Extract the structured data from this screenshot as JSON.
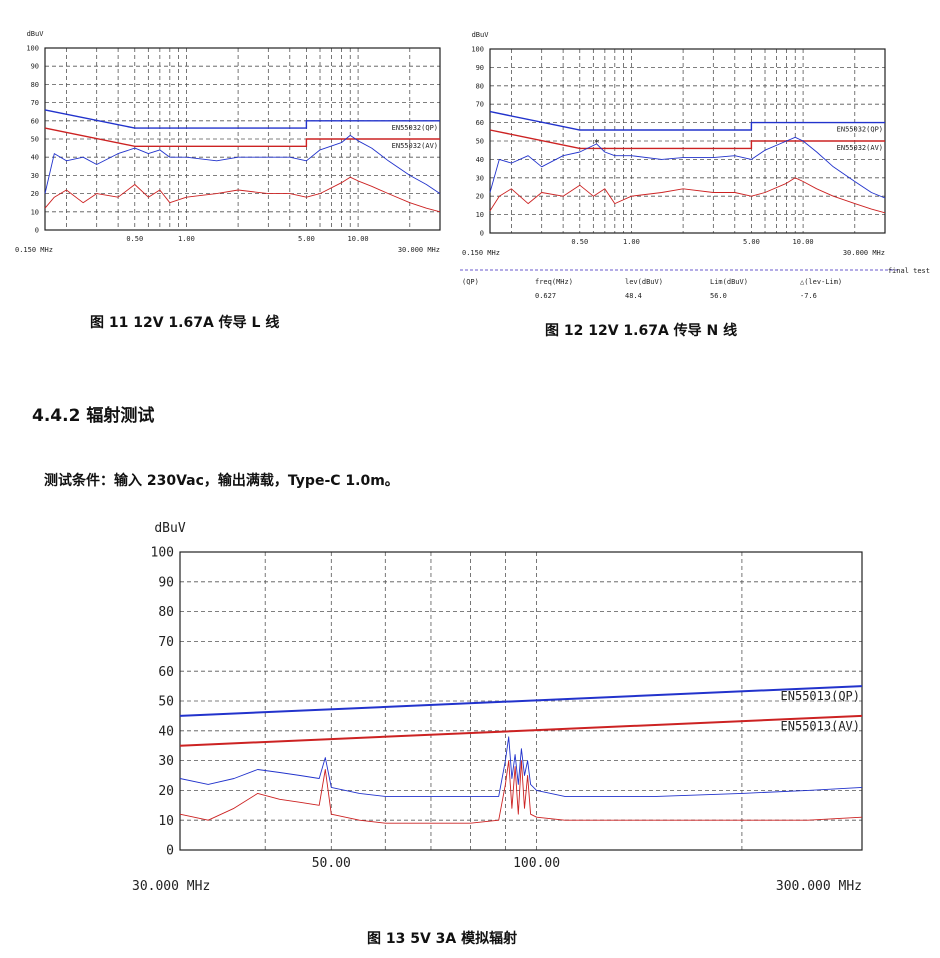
{
  "figures": {
    "fig11": {
      "caption": "图 11  12V 1.67A 传导  L 线"
    },
    "fig12": {
      "caption": "图 12  12V 1.67A 传导 N 线",
      "final_label": "final test",
      "table": {
        "detector": "(QP)",
        "headers": [
          "freq(MHz)",
          "lev(dBuV)",
          "Lim(dBuV)",
          "△(lev-Lim)"
        ],
        "row": [
          "0.627",
          "48.4",
          "56.0",
          "-7.6"
        ]
      }
    },
    "fig13": {
      "caption": "图 13  5V 3A 模拟辐射"
    }
  },
  "section": {
    "title": "4.4.2 辐射测试"
  },
  "condition": {
    "text": "测试条件：输入 230Vac，输出满载，Type-C 1.0m。"
  },
  "chart_data": [
    {
      "type": "line",
      "id": "fig11",
      "ylabel": "dBuV",
      "ylim": [
        0,
        100
      ],
      "yticks": [
        "0",
        "10",
        "20",
        "30",
        "40",
        "50",
        "60",
        "70",
        "80",
        "90",
        "100"
      ],
      "x_scale": "log",
      "xlim_mhz": [
        0.15,
        30
      ],
      "xticks": [
        {
          "v": 0.5,
          "label": "0.50"
        },
        {
          "v": 1,
          "label": "1.00"
        },
        {
          "v": 5,
          "label": "5.00"
        },
        {
          "v": 10,
          "label": "10.00"
        }
      ],
      "x_start_label": "0.150 MHz",
      "x_end_label": "30.000 MHz",
      "grid": true,
      "limits": [
        {
          "name": "EN55032(QP)",
          "color": "#2233cc",
          "points": [
            [
              0.15,
              66
            ],
            [
              0.5,
              56
            ],
            [
              5,
              56
            ],
            [
              5,
              60
            ],
            [
              30,
              60
            ]
          ]
        },
        {
          "name": "EN55032(AV)",
          "color": "#cc2222",
          "points": [
            [
              0.15,
              56
            ],
            [
              0.5,
              46
            ],
            [
              5,
              46
            ],
            [
              5,
              50
            ],
            [
              30,
              50
            ]
          ]
        }
      ],
      "series": [
        {
          "color": "#2233cc",
          "points": [
            [
              0.15,
              20
            ],
            [
              0.17,
              42
            ],
            [
              0.2,
              38
            ],
            [
              0.25,
              40
            ],
            [
              0.3,
              36
            ],
            [
              0.4,
              42
            ],
            [
              0.5,
              45
            ],
            [
              0.6,
              42
            ],
            [
              0.7,
              44
            ],
            [
              0.8,
              40
            ],
            [
              1,
              40
            ],
            [
              1.5,
              38
            ],
            [
              2,
              40
            ],
            [
              3,
              40
            ],
            [
              4,
              40
            ],
            [
              5,
              38
            ],
            [
              6,
              44
            ],
            [
              8,
              48
            ],
            [
              9,
              52
            ],
            [
              10,
              49
            ],
            [
              12,
              45
            ],
            [
              15,
              38
            ],
            [
              20,
              30
            ],
            [
              25,
              25
            ],
            [
              30,
              20
            ]
          ]
        },
        {
          "color": "#cc2222",
          "points": [
            [
              0.15,
              12
            ],
            [
              0.17,
              18
            ],
            [
              0.2,
              22
            ],
            [
              0.25,
              15
            ],
            [
              0.3,
              20
            ],
            [
              0.4,
              18
            ],
            [
              0.5,
              25
            ],
            [
              0.6,
              18
            ],
            [
              0.7,
              22
            ],
            [
              0.8,
              15
            ],
            [
              1,
              18
            ],
            [
              1.5,
              20
            ],
            [
              2,
              22
            ],
            [
              3,
              20
            ],
            [
              4,
              20
            ],
            [
              5,
              18
            ],
            [
              6,
              20
            ],
            [
              8,
              26
            ],
            [
              9,
              29
            ],
            [
              10,
              27
            ],
            [
              12,
              24
            ],
            [
              15,
              20
            ],
            [
              20,
              15
            ],
            [
              25,
              12
            ],
            [
              30,
              10
            ]
          ]
        }
      ]
    },
    {
      "type": "line",
      "id": "fig12",
      "ylabel": "dBuV",
      "ylim": [
        0,
        100
      ],
      "yticks": [
        "0",
        "10",
        "20",
        "30",
        "40",
        "50",
        "60",
        "70",
        "80",
        "90",
        "100"
      ],
      "x_scale": "log",
      "xlim_mhz": [
        0.15,
        30
      ],
      "xticks": [
        {
          "v": 0.5,
          "label": "0.50"
        },
        {
          "v": 1,
          "label": "1.00"
        },
        {
          "v": 5,
          "label": "5.00"
        },
        {
          "v": 10,
          "label": "10.00"
        }
      ],
      "x_start_label": "0.150 MHz",
      "x_end_label": "30.000 MHz",
      "grid": true,
      "marker": {
        "x": 0.627,
        "y": 48.4,
        "symbol": "*"
      },
      "limits": [
        {
          "name": "EN55032(QP)",
          "color": "#2233cc",
          "points": [
            [
              0.15,
              66
            ],
            [
              0.5,
              56
            ],
            [
              5,
              56
            ],
            [
              5,
              60
            ],
            [
              30,
              60
            ]
          ]
        },
        {
          "name": "EN55032(AV)",
          "color": "#cc2222",
          "points": [
            [
              0.15,
              56
            ],
            [
              0.5,
              46
            ],
            [
              5,
              46
            ],
            [
              5,
              50
            ],
            [
              30,
              50
            ]
          ]
        }
      ],
      "series": [
        {
          "color": "#2233cc",
          "points": [
            [
              0.15,
              22
            ],
            [
              0.17,
              40
            ],
            [
              0.2,
              38
            ],
            [
              0.25,
              42
            ],
            [
              0.3,
              36
            ],
            [
              0.4,
              42
            ],
            [
              0.5,
              44
            ],
            [
              0.627,
              48.4
            ],
            [
              0.7,
              44
            ],
            [
              0.8,
              42
            ],
            [
              1,
              42
            ],
            [
              1.5,
              40
            ],
            [
              2,
              41
            ],
            [
              3,
              41
            ],
            [
              4,
              42
            ],
            [
              5,
              40
            ],
            [
              6,
              45
            ],
            [
              8,
              50
            ],
            [
              9,
              52
            ],
            [
              10,
              50
            ],
            [
              12,
              44
            ],
            [
              15,
              36
            ],
            [
              20,
              28
            ],
            [
              25,
              22
            ],
            [
              30,
              19
            ]
          ]
        },
        {
          "color": "#cc2222",
          "points": [
            [
              0.15,
              12
            ],
            [
              0.17,
              20
            ],
            [
              0.2,
              24
            ],
            [
              0.25,
              16
            ],
            [
              0.3,
              22
            ],
            [
              0.4,
              20
            ],
            [
              0.5,
              26
            ],
            [
              0.6,
              20
            ],
            [
              0.7,
              24
            ],
            [
              0.8,
              16
            ],
            [
              1,
              20
            ],
            [
              1.5,
              22
            ],
            [
              2,
              24
            ],
            [
              3,
              22
            ],
            [
              4,
              22
            ],
            [
              5,
              20
            ],
            [
              6,
              22
            ],
            [
              8,
              27
            ],
            [
              9,
              30
            ],
            [
              10,
              28
            ],
            [
              12,
              24
            ],
            [
              15,
              20
            ],
            [
              20,
              16
            ],
            [
              25,
              13
            ],
            [
              30,
              11
            ]
          ]
        }
      ]
    },
    {
      "type": "line",
      "id": "fig13",
      "ylabel": "dBuV",
      "ylim": [
        0,
        100
      ],
      "yticks": [
        "0",
        "10",
        "20",
        "30",
        "40",
        "50",
        "60",
        "70",
        "80",
        "90",
        "100"
      ],
      "x_scale": "log",
      "xlim_mhz": [
        30,
        300
      ],
      "xticks": [
        {
          "v": 50,
          "label": "50.00"
        },
        {
          "v": 100,
          "label": "100.00"
        }
      ],
      "x_start_label": "30.000 MHz",
      "x_end_label": "300.000 MHz",
      "grid": true,
      "limits": [
        {
          "name": "EN55013(QP)",
          "color": "#2233cc",
          "points": [
            [
              30,
              45
            ],
            [
              300,
              55
            ]
          ]
        },
        {
          "name": "EN55013(AV)",
          "color": "#cc2222",
          "points": [
            [
              30,
              35
            ],
            [
              300,
              45
            ]
          ]
        }
      ],
      "series": [
        {
          "color": "#2233cc",
          "points": [
            [
              30,
              24
            ],
            [
              33,
              22
            ],
            [
              36,
              24
            ],
            [
              39,
              27
            ],
            [
              42,
              26
            ],
            [
              45,
              25
            ],
            [
              48,
              24
            ],
            [
              49,
              31
            ],
            [
              50,
              21
            ],
            [
              55,
              19
            ],
            [
              60,
              18
            ],
            [
              70,
              18
            ],
            [
              80,
              18
            ],
            [
              88,
              18
            ],
            [
              90,
              30
            ],
            [
              91,
              38
            ],
            [
              92,
              24
            ],
            [
              93,
              32
            ],
            [
              94,
              22
            ],
            [
              95,
              34
            ],
            [
              96,
              25
            ],
            [
              97,
              30
            ],
            [
              98,
              22
            ],
            [
              100,
              20
            ],
            [
              110,
              18
            ],
            [
              130,
              18
            ],
            [
              150,
              18
            ],
            [
              200,
              19
            ],
            [
              250,
              20
            ],
            [
              300,
              21
            ]
          ]
        },
        {
          "color": "#cc2222",
          "points": [
            [
              30,
              12
            ],
            [
              33,
              10
            ],
            [
              36,
              14
            ],
            [
              39,
              19
            ],
            [
              42,
              17
            ],
            [
              45,
              16
            ],
            [
              48,
              15
            ],
            [
              49,
              27
            ],
            [
              50,
              12
            ],
            [
              55,
              10
            ],
            [
              60,
              9
            ],
            [
              70,
              9
            ],
            [
              80,
              9
            ],
            [
              88,
              10
            ],
            [
              90,
              22
            ],
            [
              91,
              30
            ],
            [
              92,
              14
            ],
            [
              93,
              28
            ],
            [
              94,
              12
            ],
            [
              95,
              30
            ],
            [
              96,
              14
            ],
            [
              97,
              25
            ],
            [
              98,
              12
            ],
            [
              100,
              11
            ],
            [
              110,
              10
            ],
            [
              130,
              10
            ],
            [
              150,
              10
            ],
            [
              200,
              10
            ],
            [
              250,
              10
            ],
            [
              300,
              11
            ]
          ]
        }
      ]
    }
  ]
}
